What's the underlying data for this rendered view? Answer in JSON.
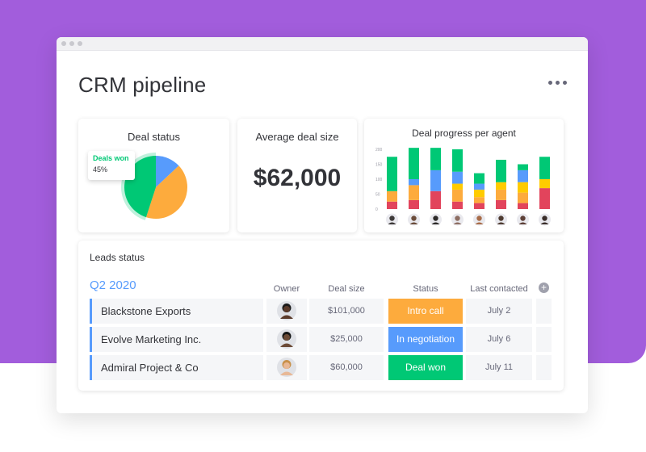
{
  "page": {
    "title": "CRM pipeline",
    "more_icon": "more-horizontal-icon"
  },
  "colors": {
    "background": "#a25ddc",
    "green": "#00c875",
    "orange": "#fdab3d",
    "blue": "#579bfc",
    "red": "#e2445c",
    "yellow": "#ffcb00"
  },
  "deal_status": {
    "title": "Deal status",
    "tooltip_label": "Deals won",
    "tooltip_value": "45%",
    "chart_data": {
      "type": "pie",
      "slices": [
        {
          "label": "Deals won",
          "value": 45,
          "color": "#00c875"
        },
        {
          "label": "",
          "value": 42,
          "color": "#fdab3d"
        },
        {
          "label": "",
          "value": 13,
          "color": "#579bfc"
        }
      ]
    }
  },
  "average_deal": {
    "title": "Average deal size",
    "value": "$62,000"
  },
  "deal_progress": {
    "title": "Deal progress per agent",
    "chart_data": {
      "type": "bar",
      "stacked": true,
      "ylim": [
        0,
        200
      ],
      "yticks": [
        "200",
        "150",
        "100",
        "50",
        "0"
      ],
      "categories": [
        "agent 1",
        "agent 2",
        "agent 3",
        "agent 4",
        "agent 5",
        "agent 6",
        "agent 7",
        "agent 8"
      ],
      "series": [
        {
          "color": "#e2445c",
          "values": [
            25,
            30,
            60,
            25,
            20,
            30,
            20,
            70
          ]
        },
        {
          "color": "#fdab3d",
          "values": [
            35,
            50,
            0,
            40,
            20,
            35,
            35,
            0
          ]
        },
        {
          "color": "#ffcb00",
          "values": [
            0,
            0,
            0,
            20,
            25,
            25,
            35,
            30
          ]
        },
        {
          "color": "#579bfc",
          "values": [
            0,
            20,
            70,
            40,
            20,
            0,
            40,
            0
          ]
        },
        {
          "color": "#00c875",
          "values": [
            115,
            105,
            75,
            75,
            35,
            75,
            20,
            75
          ]
        }
      ],
      "avatar_colors": [
        "#3e3a39",
        "#6b4d3b",
        "#2d2a29",
        "#8d6e63",
        "#a86c48",
        "#4e3b31",
        "#5d4037",
        "#3a2e2a"
      ]
    }
  },
  "leads": {
    "title": "Leads status",
    "group_title": "Q2 2020",
    "columns": {
      "owner": "Owner",
      "deal_size": "Deal size",
      "status": "Status",
      "last_contacted": "Last contacted"
    },
    "add_column": "+",
    "rows": [
      {
        "name": "Blackstone Exports",
        "deal_size": "$101,000",
        "status": "Intro call",
        "status_color": "#fdab3d",
        "last_contacted": "July 2",
        "avatar_skin": "#5a3a2a",
        "avatar_hair": "#1a1a1a"
      },
      {
        "name": "Evolve Marketing Inc.",
        "deal_size": "$25,000",
        "status": "In negotiation",
        "status_color": "#579bfc",
        "last_contacted": "July 6",
        "avatar_skin": "#6b4a36",
        "avatar_hair": "#151515"
      },
      {
        "name": "Admiral Project & Co",
        "deal_size": "$60,000",
        "status": "Deal won",
        "status_color": "#00c875",
        "last_contacted": "July 11",
        "avatar_skin": "#e8b896",
        "avatar_hair": "#c8904a"
      }
    ]
  }
}
